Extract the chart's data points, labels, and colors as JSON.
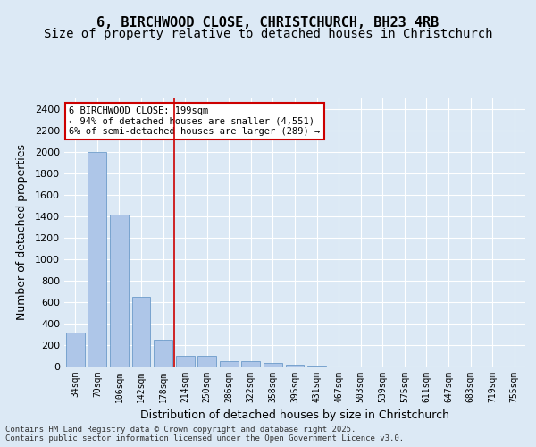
{
  "title1": "6, BIRCHWOOD CLOSE, CHRISTCHURCH, BH23 4RB",
  "title2": "Size of property relative to detached houses in Christchurch",
  "xlabel": "Distribution of detached houses by size in Christchurch",
  "ylabel": "Number of detached properties",
  "categories": [
    "34sqm",
    "70sqm",
    "106sqm",
    "142sqm",
    "178sqm",
    "214sqm",
    "250sqm",
    "286sqm",
    "322sqm",
    "358sqm",
    "395sqm",
    "431sqm",
    "467sqm",
    "503sqm",
    "539sqm",
    "575sqm",
    "611sqm",
    "647sqm",
    "683sqm",
    "719sqm",
    "755sqm"
  ],
  "values": [
    320,
    2000,
    1420,
    650,
    250,
    100,
    100,
    50,
    50,
    30,
    20,
    5,
    3,
    2,
    1,
    1,
    0,
    0,
    0,
    0,
    0
  ],
  "bar_color": "#aec6e8",
  "bar_edge_color": "#5a8fc2",
  "vline_x": 4.5,
  "vline_color": "#cc0000",
  "annotation_box_text": "6 BIRCHWOOD CLOSE: 199sqm\n← 94% of detached houses are smaller (4,551)\n6% of semi-detached houses are larger (289) →",
  "annotation_box_color": "#cc0000",
  "annotation_box_fill": "#ffffff",
  "ylim": [
    0,
    2500
  ],
  "yticks": [
    0,
    200,
    400,
    600,
    800,
    1000,
    1200,
    1400,
    1600,
    1800,
    2000,
    2200,
    2400
  ],
  "background_color": "#dce9f5",
  "plot_bg_color": "#dce9f5",
  "grid_color": "#ffffff",
  "footer": "Contains HM Land Registry data © Crown copyright and database right 2025.\nContains public sector information licensed under the Open Government Licence v3.0.",
  "title1_fontsize": 11,
  "title2_fontsize": 10,
  "xlabel_fontsize": 9,
  "ylabel_fontsize": 9
}
